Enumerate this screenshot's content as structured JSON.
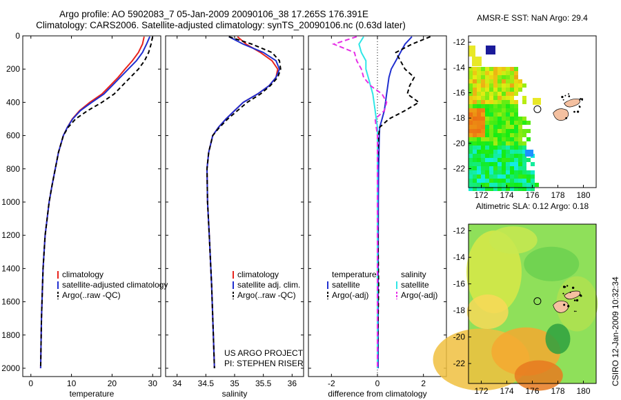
{
  "header": {
    "line1": "Argo profile: AO 5902083_7 05-Jan-2009 20090106_38 17.265S 176.391E",
    "line2": "Climatology: CARS2006. Satellite-adjusted climatology: synTS_20090106.nc (0.63d later)"
  },
  "side_label": "CSIRO 12-Jan-2009 10:32:34",
  "colors": {
    "climatology": "#e8231c",
    "satellite": "#1f2ecf",
    "argo": "#000000",
    "sal_satellite": "#2ee6e6",
    "sal_argo": "#e62ee6"
  },
  "chart_data": [
    {
      "type": "line",
      "id": "temperature",
      "xlabel": "temperature",
      "ylabel": "",
      "reversed_y": true,
      "xlim": [
        -2,
        32
      ],
      "ylim": [
        0,
        2050
      ],
      "xticks": [
        0,
        10,
        20,
        30
      ],
      "xticklabels": [
        "0",
        "10",
        "20",
        "30"
      ],
      "yticks": [
        0,
        200,
        400,
        600,
        800,
        1000,
        1200,
        1400,
        1600,
        1800,
        2000
      ],
      "yticklabels": [
        "0",
        "200",
        "400",
        "600",
        "800",
        "1000",
        "1200",
        "1400",
        "1600",
        "1800",
        "2000"
      ],
      "legend": [
        "climatology",
        "satellite-adjusted climatology",
        "Argo(..raw -QC)"
      ],
      "series": [
        {
          "name": "climatology",
          "color": "#e8231c",
          "dash": "",
          "x": [
            27.9,
            27.5,
            26.5,
            25,
            23.2,
            21.5,
            19.5,
            17.5,
            14.5,
            12,
            10.2,
            9,
            8,
            6.8,
            6,
            5.2,
            4.5,
            3.5,
            3,
            2.6,
            2.4
          ],
          "y": [
            5,
            50,
            100,
            150,
            200,
            250,
            300,
            350,
            400,
            450,
            500,
            550,
            600,
            700,
            800,
            900,
            1000,
            1200,
            1400,
            1700,
            2000
          ]
        },
        {
          "name": "satellite-adjusted climatology",
          "color": "#1f2ecf",
          "dash": "",
          "x": [
            29.3,
            28.5,
            27.5,
            26,
            24,
            22,
            20,
            18,
            15,
            12.2,
            10.3,
            9,
            8,
            6.8,
            6,
            5.2,
            4.5,
            3.5,
            3,
            2.6,
            2.4
          ],
          "y": [
            5,
            50,
            100,
            150,
            200,
            250,
            300,
            350,
            400,
            450,
            500,
            550,
            600,
            700,
            800,
            900,
            1000,
            1200,
            1400,
            1700,
            2000
          ]
        },
        {
          "name": "Argo(..raw -QC)",
          "color": "#000000",
          "dash": "6,4",
          "x": [
            30,
            29.6,
            29,
            28,
            26.5,
            24.5,
            22.5,
            20.5,
            17.5,
            14,
            11,
            9.2,
            8,
            6.8,
            6,
            5.2,
            4.5,
            3.5,
            3,
            2.6,
            2.4
          ],
          "y": [
            5,
            50,
            100,
            150,
            200,
            250,
            300,
            350,
            400,
            450,
            500,
            550,
            600,
            700,
            800,
            900,
            1000,
            1200,
            1400,
            1700,
            2000
          ]
        }
      ]
    },
    {
      "type": "line",
      "id": "salinity",
      "xlabel": "salinity",
      "ylabel": "",
      "reversed_y": true,
      "xlim": [
        33.8,
        36.2
      ],
      "ylim": [
        0,
        2050
      ],
      "xticks": [
        34,
        34.5,
        35,
        35.5,
        36
      ],
      "xticklabels": [
        "34",
        "34.5",
        "35",
        "35.5",
        "36"
      ],
      "legend": [
        "climatology",
        "satellite adj. clim.",
        "Argo(..raw -QC)"
      ],
      "annotations": [
        "US ARGO PROJECT",
        "PI: STEPHEN RISER"
      ],
      "series": [
        {
          "name": "climatology",
          "color": "#e8231c",
          "dash": "",
          "x": [
            35.05,
            35.2,
            35.45,
            35.65,
            35.75,
            35.72,
            35.6,
            35.4,
            35.15,
            35.0,
            34.85,
            34.72,
            34.62,
            34.55,
            34.52,
            34.53,
            34.56,
            34.6,
            34.63,
            34.65
          ],
          "y": [
            5,
            50,
            100,
            150,
            200,
            250,
            300,
            350,
            400,
            450,
            500,
            550,
            600,
            700,
            800,
            1000,
            1200,
            1500,
            1800,
            2000
          ]
        },
        {
          "name": "satellite adj. clim.",
          "color": "#1f2ecf",
          "dash": "",
          "x": [
            34.9,
            35.15,
            35.5,
            35.72,
            35.78,
            35.72,
            35.6,
            35.4,
            35.15,
            35.0,
            34.85,
            34.72,
            34.62,
            34.55,
            34.52,
            34.53,
            34.56,
            34.6,
            34.63,
            34.65
          ],
          "y": [
            5,
            50,
            100,
            150,
            200,
            250,
            300,
            350,
            400,
            450,
            500,
            550,
            600,
            700,
            800,
            1000,
            1200,
            1500,
            1800,
            2000
          ]
        },
        {
          "name": "Argo(..raw -QC)",
          "color": "#000000",
          "dash": "6,4",
          "x": [
            34.9,
            35.3,
            35.65,
            35.78,
            35.8,
            35.75,
            35.62,
            35.45,
            35.22,
            35.05,
            34.88,
            34.74,
            34.62,
            34.55,
            34.52,
            34.53,
            34.56,
            34.6,
            34.63,
            34.65
          ],
          "y": [
            5,
            50,
            100,
            150,
            200,
            250,
            300,
            350,
            400,
            450,
            500,
            550,
            600,
            700,
            800,
            1000,
            1200,
            1500,
            1800,
            2000
          ]
        }
      ]
    },
    {
      "type": "line",
      "id": "difference",
      "xlabel": "difference from climatology",
      "ylabel": "",
      "reversed_y": true,
      "xlim": [
        -3,
        3
      ],
      "ylim": [
        0,
        2050
      ],
      "xticks": [
        -2,
        0,
        2
      ],
      "xticklabels": [
        "-2",
        "0",
        "2"
      ],
      "legend": [
        "temperature",
        "satellite",
        "Argo(-adj)",
        "salinity",
        "satellite",
        "Argo(-adj)"
      ],
      "series": [
        {
          "name": "temperature satellite",
          "color": "#1f2ecf",
          "dash": "",
          "x": [
            1.5,
            1.2,
            1.0,
            0.8,
            0.6,
            0.5,
            0.45,
            0.4,
            0.35,
            0.3,
            0.2,
            0.1,
            0.08,
            0.05,
            0.04,
            0.03,
            0.03
          ],
          "y": [
            5,
            50,
            100,
            150,
            200,
            250,
            300,
            350,
            400,
            450,
            500,
            550,
            600,
            800,
            1000,
            1500,
            2000
          ]
        },
        {
          "name": "temperature Argo(-adj)",
          "color": "#000000",
          "dash": "6,4",
          "x": [
            2.3,
            1.5,
            0.8,
            1.0,
            1.2,
            1.6,
            1.4,
            1.3,
            1.8,
            1.2,
            0.5,
            0.1,
            0.05,
            0.0,
            0.0,
            0.05,
            0.0
          ],
          "y": [
            5,
            50,
            100,
            150,
            200,
            250,
            300,
            350,
            400,
            450,
            500,
            550,
            600,
            800,
            1000,
            1500,
            2000
          ]
        },
        {
          "name": "salinity satellite",
          "color": "#2ee6e6",
          "dash": "",
          "x": [
            -0.6,
            -0.8,
            -0.7,
            -0.5,
            -0.5,
            -0.4,
            -0.3,
            -0.2,
            -0.15,
            -0.1,
            -0.05,
            0.0,
            0.0,
            0.0,
            0.0,
            0.0,
            0.0
          ],
          "y": [
            5,
            50,
            100,
            150,
            200,
            250,
            300,
            350,
            400,
            450,
            500,
            550,
            600,
            800,
            1000,
            1500,
            2000
          ]
        },
        {
          "name": "salinity Argo(-adj)",
          "color": "#e62ee6",
          "dash": "7,4",
          "x": [
            -0.9,
            -1.9,
            -1.0,
            -0.9,
            -0.7,
            -0.6,
            -0.3,
            0.2,
            0.4,
            0.3,
            -0.1,
            -0.05,
            0.0,
            0.0,
            0.0,
            0.0,
            0.0
          ],
          "y": [
            5,
            50,
            100,
            150,
            200,
            250,
            300,
            350,
            400,
            450,
            500,
            550,
            600,
            800,
            1000,
            1500,
            2000
          ]
        }
      ]
    },
    {
      "type": "heatmap",
      "id": "sst",
      "title": "AMSR-E SST: NaN Argo: 29.4",
      "xlim": [
        171,
        181
      ],
      "ylim": [
        -23.5,
        -11.5
      ],
      "xticks": [
        172,
        174,
        176,
        178,
        180
      ],
      "xticklabels": [
        "172",
        "174",
        "176",
        "178",
        "180"
      ],
      "yticks": [
        -12,
        -14,
        -16,
        -18,
        -20,
        -22
      ],
      "yticklabels": [
        "-12",
        "-14",
        "-16",
        "-18",
        "-20",
        "-22"
      ],
      "argo_position": [
        176.4,
        -17.3
      ]
    },
    {
      "type": "heatmap",
      "id": "sla",
      "title": "Altimetric SLA: 0.12 Argo: 0.18",
      "xlim": [
        171,
        181
      ],
      "ylim": [
        -23.5,
        -11.5
      ],
      "xticks": [
        172,
        174,
        176,
        178,
        180
      ],
      "xticklabels": [
        "172",
        "174",
        "176",
        "178",
        "180"
      ],
      "yticks": [
        -12,
        -14,
        -16,
        -18,
        -20,
        -22
      ],
      "yticklabels": [
        "-12",
        "-14",
        "-16",
        "-18",
        "-20",
        "-22"
      ],
      "argo_position": [
        176.4,
        -17.3
      ]
    }
  ]
}
